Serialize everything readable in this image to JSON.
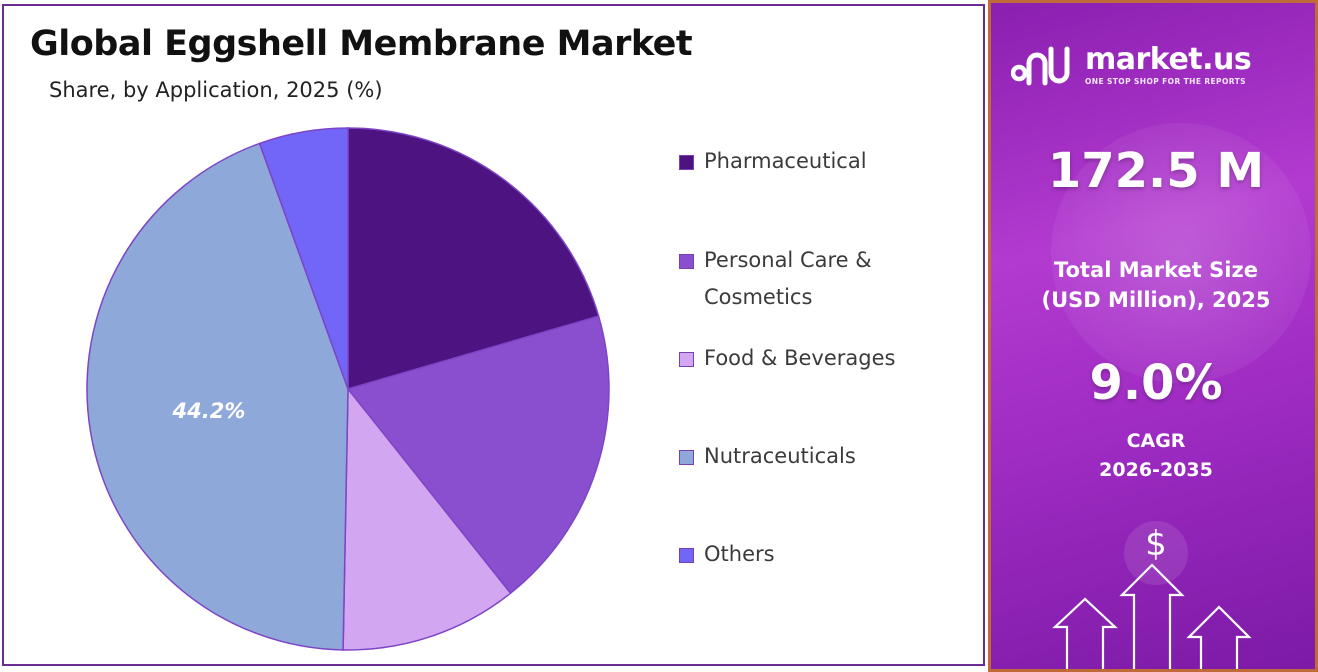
{
  "title": "Global Eggshell Membrane Market",
  "subtitle": "Share, by Application, 2025 (%)",
  "chart_data": {
    "type": "pie",
    "title": "Global Eggshell Membrane Market",
    "subtitle": "Share, by Application, 2025 (%)",
    "categories": [
      "Pharmaceutical",
      "Personal Care & Cosmetics",
      "Food & Beverages",
      "Nutraceuticals",
      "Others"
    ],
    "values": [
      20.5,
      18.8,
      11.0,
      44.2,
      5.5
    ],
    "colors": [
      "#4d1481",
      "#8a4fcf",
      "#d2a6f0",
      "#8fa8da",
      "#7166f7"
    ],
    "data_labels": [
      {
        "category": "Nutraceuticals",
        "text": "44.2%"
      }
    ],
    "legend_position": "right",
    "start_angle_deg": 0,
    "direction": "clockwise"
  },
  "legend": [
    {
      "label": "Pharmaceutical",
      "color": "#4d1481"
    },
    {
      "label": "Personal Care & Cosmetics",
      "color": "#8a4fcf"
    },
    {
      "label": "Food & Beverages",
      "color": "#d2a6f0"
    },
    {
      "label": "Nutraceuticals",
      "color": "#8fa8da"
    },
    {
      "label": "Others",
      "color": "#7166f7"
    }
  ],
  "sidebar": {
    "brand_name": "market.us",
    "brand_tagline": "ONE STOP SHOP FOR THE REPORTS",
    "market_size_value": "172.5 M",
    "market_size_label": "Total Market Size\n(USD Million), 2025",
    "cagr_value": "9.0%",
    "cagr_label": "CAGR\n2026-2035",
    "currency_symbol": "$",
    "accent_color": "#a02cc4"
  }
}
